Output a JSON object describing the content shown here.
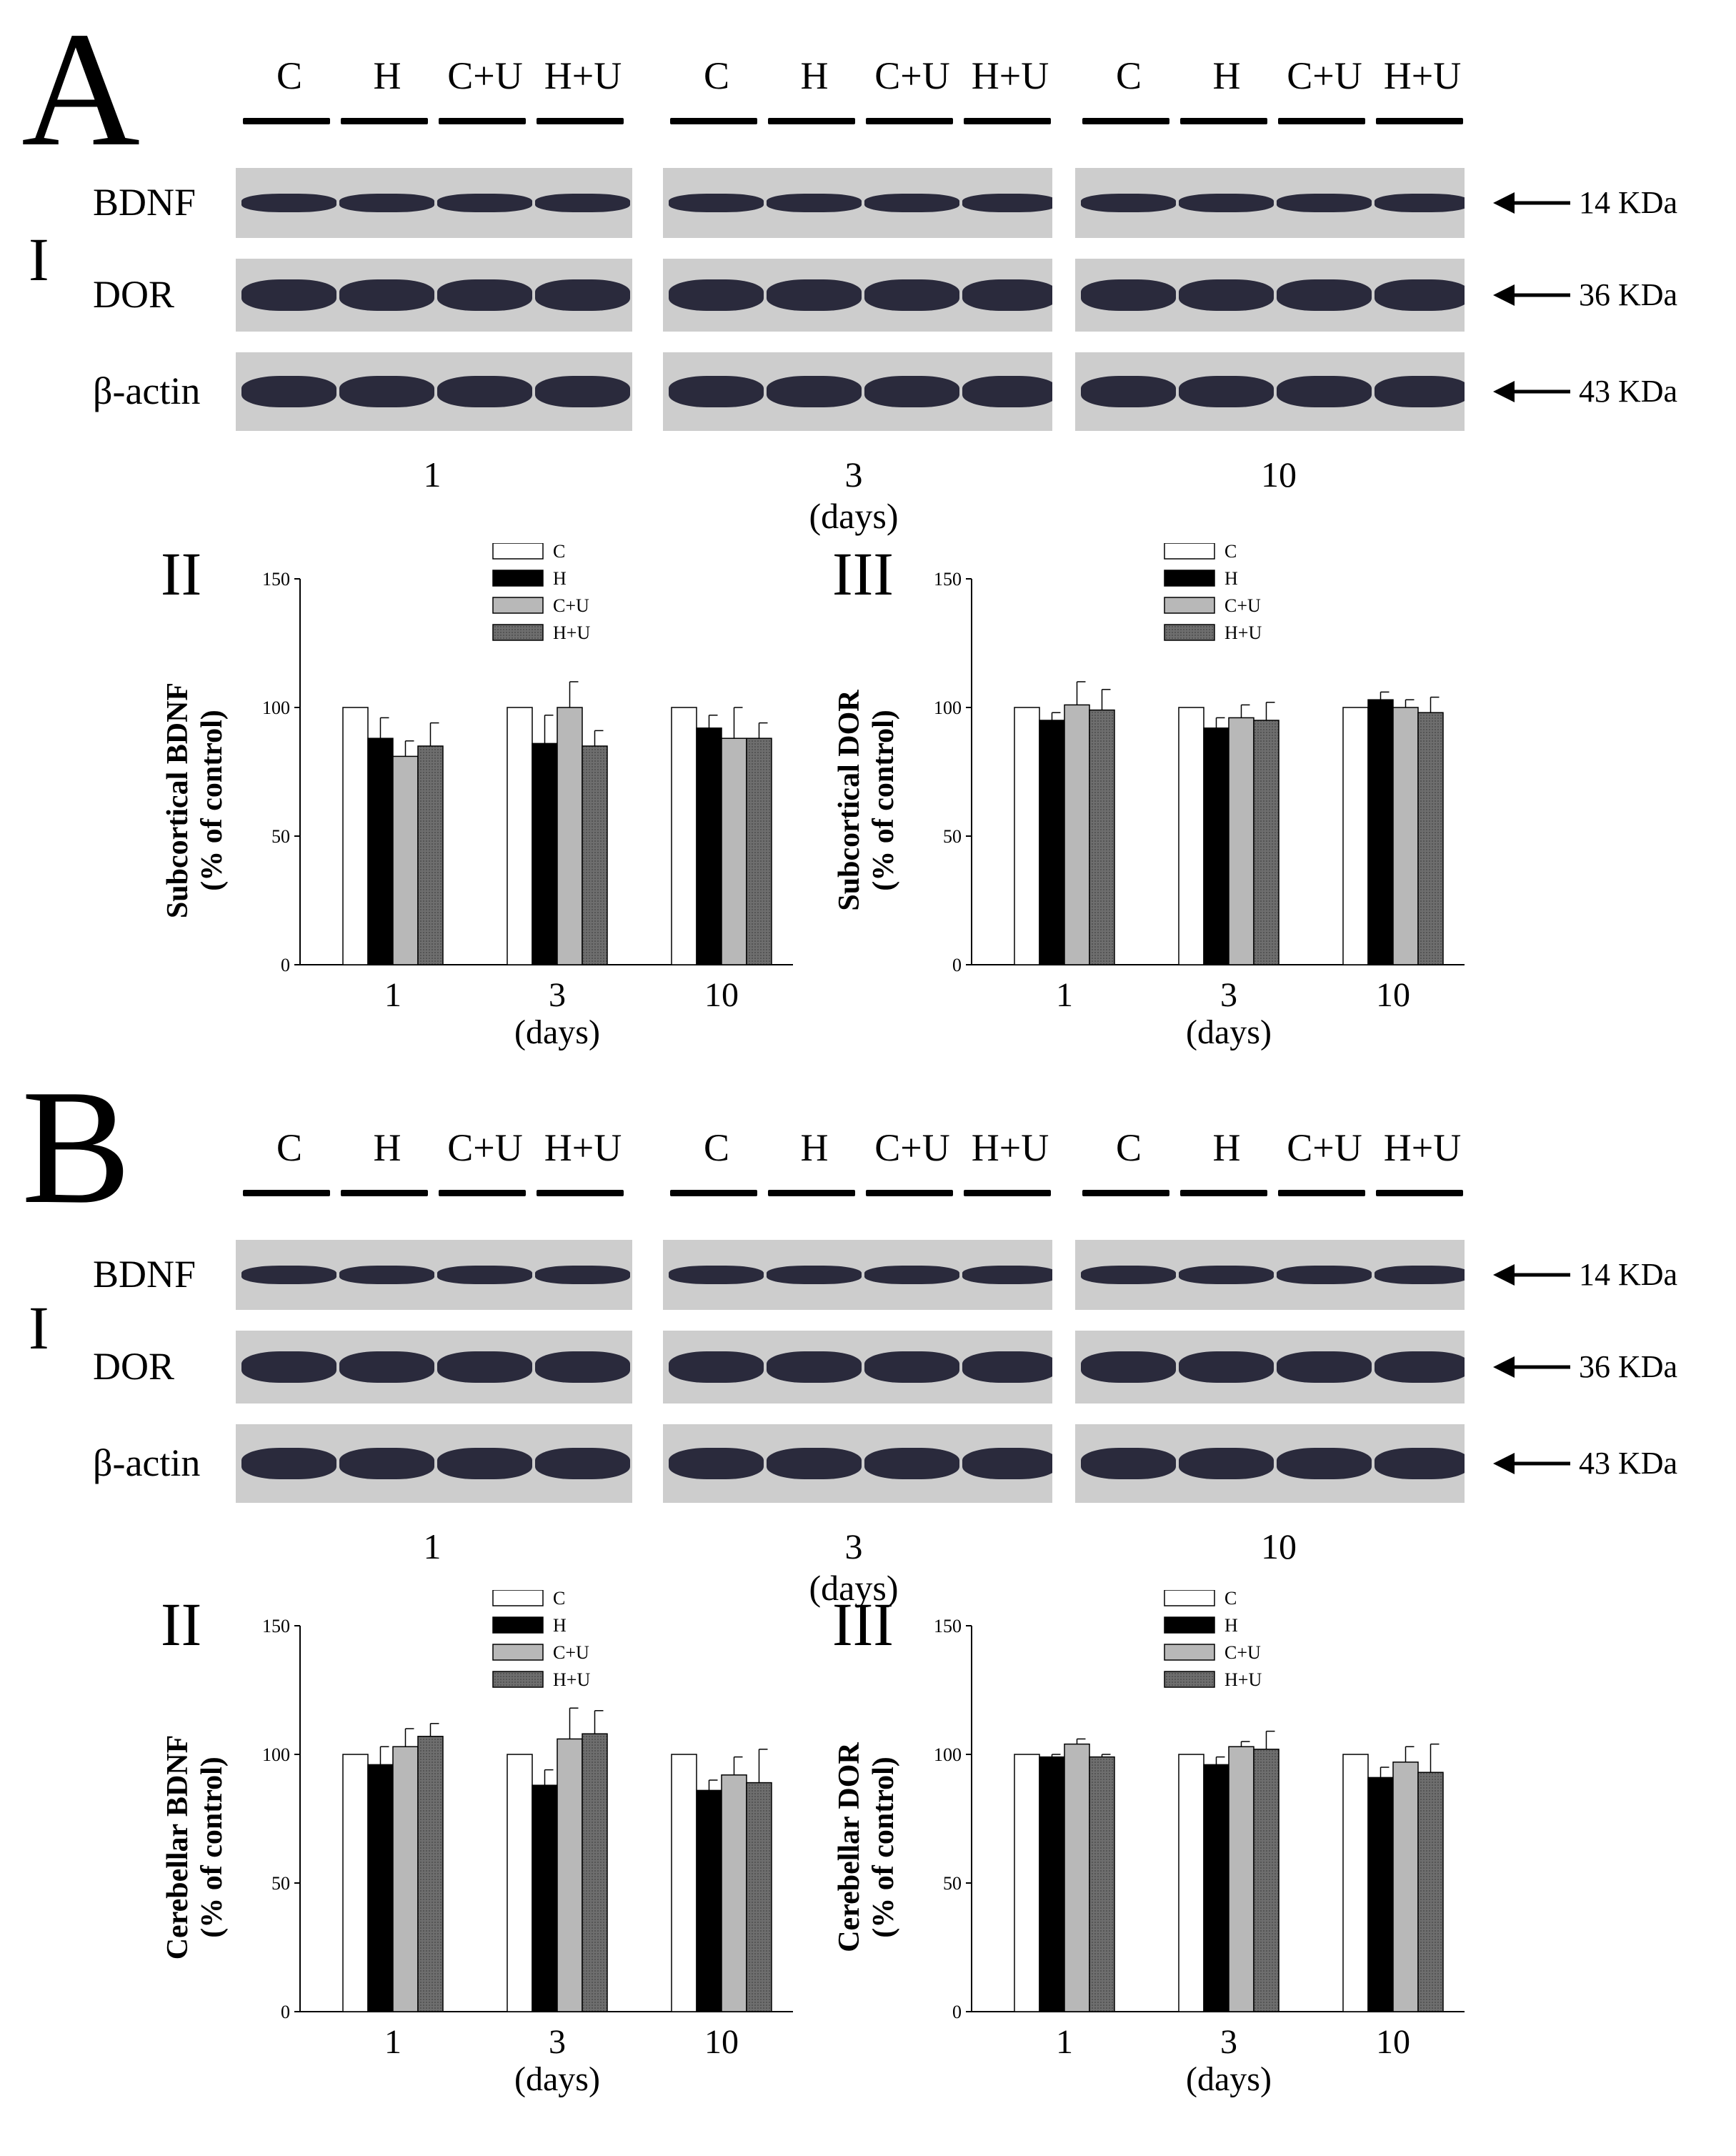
{
  "figure": {
    "sections": [
      {
        "letter": "A",
        "blot_roman": "I",
        "lanes": [
          "C",
          "H",
          "C+U",
          "H+U"
        ],
        "proteins": [
          {
            "name": "BDNF",
            "kda": "14 KDa"
          },
          {
            "name": "DOR",
            "kda": "36 KDa"
          },
          {
            "name": "β-actin",
            "kda": "43 KDa"
          }
        ],
        "day_labels": [
          "1",
          "3",
          "10"
        ],
        "days_unit": "(days)"
      },
      {
        "letter": "B",
        "blot_roman": "I",
        "lanes": [
          "C",
          "H",
          "C+U",
          "H+U"
        ],
        "proteins": [
          {
            "name": "BDNF",
            "kda": "14 KDa"
          },
          {
            "name": "DOR",
            "kda": "36 KDa"
          },
          {
            "name": "β-actin",
            "kda": "43 KDa"
          }
        ],
        "day_labels": [
          "1",
          "3",
          "10"
        ],
        "days_unit": "(days)"
      }
    ]
  },
  "chart_data": [
    {
      "panel": "A-II",
      "roman": "II",
      "type": "bar",
      "ylabel_line1": "Subcortical BDNF",
      "ylabel_line2": "(% of control)",
      "categories": [
        "1",
        "3",
        "10"
      ],
      "xlabel": "(days)",
      "ylim": [
        0,
        150
      ],
      "yticks": [
        "0",
        "50",
        "100",
        "150"
      ],
      "legend_position": "top-center",
      "series": [
        {
          "name": "C",
          "values": [
            100,
            100,
            100
          ],
          "errors": [
            0,
            0,
            0
          ]
        },
        {
          "name": "H",
          "values": [
            88,
            86,
            92
          ],
          "errors": [
            8,
            11,
            5
          ]
        },
        {
          "name": "C+U",
          "values": [
            81,
            100,
            88
          ],
          "errors": [
            6,
            10,
            12
          ]
        },
        {
          "name": "H+U",
          "values": [
            85,
            85,
            88
          ],
          "errors": [
            9,
            6,
            6
          ]
        }
      ]
    },
    {
      "panel": "A-III",
      "roman": "III",
      "type": "bar",
      "ylabel_line1": "Subcortical DOR",
      "ylabel_line2": "(% of control)",
      "categories": [
        "1",
        "3",
        "10"
      ],
      "xlabel": "(days)",
      "ylim": [
        0,
        150
      ],
      "yticks": [
        "0",
        "50",
        "100",
        "150"
      ],
      "legend_position": "top-center",
      "series": [
        {
          "name": "C",
          "values": [
            100,
            100,
            100
          ],
          "errors": [
            0,
            0,
            0
          ]
        },
        {
          "name": "H",
          "values": [
            95,
            92,
            103
          ],
          "errors": [
            3,
            4,
            3
          ]
        },
        {
          "name": "C+U",
          "values": [
            101,
            96,
            100
          ],
          "errors": [
            9,
            5,
            3
          ]
        },
        {
          "name": "H+U",
          "values": [
            99,
            95,
            98
          ],
          "errors": [
            8,
            7,
            6
          ]
        }
      ]
    },
    {
      "panel": "B-II",
      "roman": "II",
      "type": "bar",
      "ylabel_line1": "Cerebellar BDNF",
      "ylabel_line2": "(% of control)",
      "categories": [
        "1",
        "3",
        "10"
      ],
      "xlabel": "(days)",
      "ylim": [
        0,
        150
      ],
      "yticks": [
        "0",
        "50",
        "100",
        "150"
      ],
      "legend_position": "top-center",
      "series": [
        {
          "name": "C",
          "values": [
            100,
            100,
            100
          ],
          "errors": [
            0,
            0,
            0
          ]
        },
        {
          "name": "H",
          "values": [
            96,
            88,
            86
          ],
          "errors": [
            7,
            6,
            4
          ]
        },
        {
          "name": "C+U",
          "values": [
            103,
            106,
            92
          ],
          "errors": [
            7,
            12,
            7
          ]
        },
        {
          "name": "H+U",
          "values": [
            107,
            108,
            89
          ],
          "errors": [
            5,
            9,
            13
          ]
        }
      ]
    },
    {
      "panel": "B-III",
      "roman": "III",
      "type": "bar",
      "ylabel_line1": "Cerebellar DOR",
      "ylabel_line2": "(% of control)",
      "categories": [
        "1",
        "3",
        "10"
      ],
      "xlabel": "(days)",
      "ylim": [
        0,
        150
      ],
      "yticks": [
        "0",
        "50",
        "100",
        "150"
      ],
      "legend_position": "top-center",
      "series": [
        {
          "name": "C",
          "values": [
            100,
            100,
            100
          ],
          "errors": [
            0,
            0,
            0
          ]
        },
        {
          "name": "H",
          "values": [
            99,
            96,
            91
          ],
          "errors": [
            1,
            3,
            4
          ]
        },
        {
          "name": "C+U",
          "values": [
            104,
            103,
            97
          ],
          "errors": [
            2,
            2,
            6
          ]
        },
        {
          "name": "H+U",
          "values": [
            99,
            102,
            93
          ],
          "errors": [
            1,
            7,
            11
          ]
        }
      ]
    }
  ],
  "colors": {
    "C": "#ffffff",
    "H": "#000000",
    "C+U": "#b8b8b8",
    "H+U": "#6e6e6e",
    "blot_background": "#cdcdcd",
    "band": "#2a2a3c"
  }
}
